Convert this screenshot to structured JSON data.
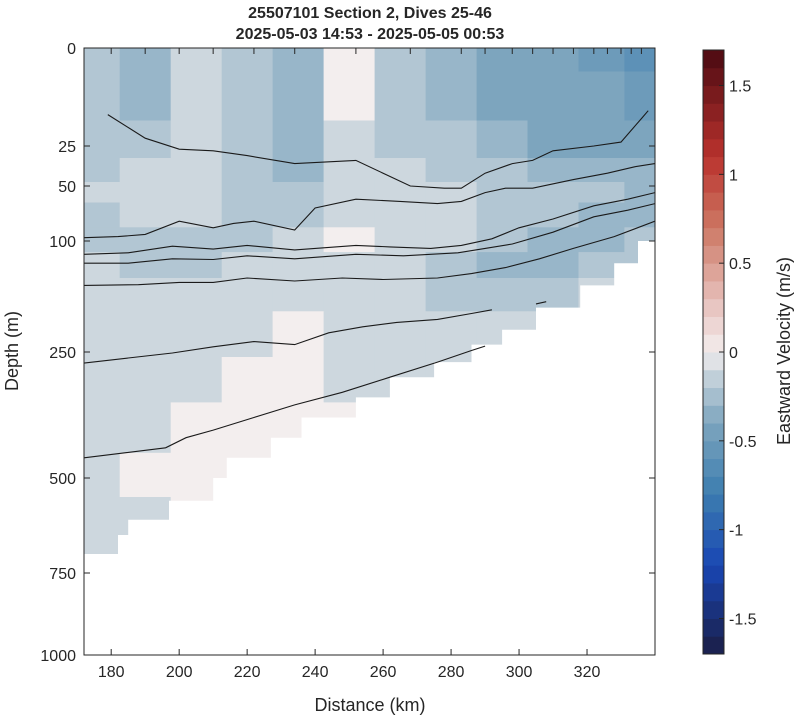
{
  "chart_data": {
    "type": "heatmap",
    "title": "25507101 Section 2, Dives 25-46",
    "subtitle": "2025-05-03 14:53 - 2025-05-05 00:53",
    "xlabel": "Distance (km)",
    "ylabel": "Depth (m)",
    "colorbar_label": "Eastward Velocity (m/s)",
    "xlim": [
      172,
      340
    ],
    "ylim": [
      1000,
      0
    ],
    "y_scale": "piecewise (stretched 0-250 m, compressed 250-1000 m)",
    "x_ticks": [
      180,
      200,
      220,
      240,
      260,
      280,
      300,
      320
    ],
    "x_tick_labels": [
      "180",
      "200",
      "220",
      "240",
      "260",
      "280",
      "300",
      "320"
    ],
    "y_ticks": [
      0,
      25,
      50,
      100,
      250,
      500,
      750,
      1000
    ],
    "y_tick_labels": [
      "0",
      "25",
      "50",
      "100",
      "250",
      "500",
      "750",
      "1000"
    ],
    "clim": [
      -1.7,
      1.7
    ],
    "colorbar_ticks": [
      1.5,
      1,
      0.5,
      0,
      -0.5,
      -1,
      -1.5
    ],
    "colorbar_tick_labels": [
      "1.5",
      "1",
      "0.5",
      "0",
      "-0.5",
      "-1",
      "-1.5"
    ],
    "colormap": "diverging blue-white-red (balance)",
    "colors": {
      "negative_end": "#1b2a6b",
      "zero": "#f3eeee",
      "positive_end": "#4a0a10"
    },
    "dive_markers_x": [
      180,
      190,
      200,
      210,
      222,
      234,
      252,
      268,
      283,
      290,
      298,
      304,
      310,
      316,
      322,
      326,
      330,
      333,
      336
    ],
    "velocity_fill": {
      "x": [
        175,
        190,
        205,
        220,
        235,
        250,
        265,
        280,
        295,
        310,
        325,
        337
      ],
      "depth": [
        0,
        12,
        25,
        40,
        55,
        75,
        100,
        130,
        170,
        220,
        300,
        400,
        500,
        600,
        700
      ],
      "values": [
        [
          -0.2,
          -0.3,
          -0.1,
          -0.25,
          -0.3,
          -0.05,
          -0.2,
          -0.3,
          -0.4,
          -0.45,
          -0.5,
          -0.6
        ],
        [
          -0.2,
          -0.3,
          -0.1,
          -0.25,
          -0.3,
          -0.05,
          -0.2,
          -0.3,
          -0.4,
          -0.45,
          -0.45,
          -0.55
        ],
        [
          -0.2,
          -0.25,
          -0.1,
          -0.2,
          -0.3,
          -0.1,
          -0.2,
          -0.25,
          -0.35,
          -0.4,
          -0.4,
          -0.45
        ],
        [
          -0.2,
          -0.15,
          -0.15,
          -0.2,
          -0.35,
          -0.15,
          -0.15,
          -0.2,
          -0.25,
          -0.3,
          -0.3,
          -0.35
        ],
        [
          -0.15,
          -0.15,
          -0.15,
          -0.2,
          -0.2,
          -0.15,
          -0.15,
          -0.15,
          -0.2,
          -0.25,
          -0.25,
          -0.3
        ],
        [
          -0.2,
          -0.15,
          -0.15,
          -0.2,
          -0.2,
          -0.1,
          -0.15,
          -0.15,
          -0.2,
          -0.25,
          -0.3,
          -0.3
        ],
        [
          -0.2,
          -0.2,
          -0.2,
          -0.2,
          -0.15,
          -0.05,
          -0.1,
          -0.15,
          -0.2,
          -0.3,
          -0.3,
          -0.25
        ],
        [
          -0.15,
          -0.2,
          -0.2,
          -0.15,
          -0.15,
          -0.1,
          -0.1,
          -0.2,
          -0.3,
          -0.3,
          -0.25,
          -0.2
        ],
        [
          -0.15,
          -0.15,
          -0.15,
          -0.15,
          -0.1,
          -0.1,
          -0.15,
          -0.2,
          -0.25,
          -0.2,
          -0.15,
          -0.15
        ],
        [
          -0.15,
          -0.15,
          -0.15,
          -0.1,
          -0.05,
          -0.1,
          -0.15,
          -0.15,
          -0.15,
          -0.15,
          -0.15,
          -0.15
        ],
        [
          -0.15,
          -0.1,
          -0.1,
          -0.05,
          -0.05,
          -0.1,
          -0.1,
          -0.1,
          -0.1,
          -0.1,
          -0.1,
          -0.1
        ],
        [
          -0.1,
          -0.1,
          -0.05,
          -0.05,
          -0.05,
          -0.05,
          -0.05,
          -0.05,
          -0.05,
          -0.05,
          -0.05,
          -0.05
        ],
        [
          -0.1,
          -0.05,
          -0.05,
          -0.05,
          -0.05,
          -0.05,
          -0.05,
          -0.05,
          -0.05,
          -0.05,
          -0.05,
          -0.05
        ],
        [
          -0.15,
          -0.1,
          -0.05,
          -0.05,
          -0.05,
          -0.05,
          -0.05,
          -0.05,
          -0.05,
          -0.05,
          -0.05,
          -0.05
        ],
        [
          -0.15,
          -0.1,
          -0.05,
          -0.05,
          -0.05,
          -0.05,
          -0.05,
          -0.05,
          -0.05,
          -0.05,
          -0.05,
          -0.05
        ]
      ]
    },
    "bottom_boundary": [
      {
        "x": 172,
        "depth": 700
      },
      {
        "x": 182,
        "depth": 700
      },
      {
        "x": 182,
        "depth": 650
      },
      {
        "x": 185,
        "depth": 650
      },
      {
        "x": 185,
        "depth": 610
      },
      {
        "x": 197,
        "depth": 610
      },
      {
        "x": 197,
        "depth": 560
      },
      {
        "x": 210,
        "depth": 560
      },
      {
        "x": 210,
        "depth": 500
      },
      {
        "x": 214,
        "depth": 500
      },
      {
        "x": 214,
        "depth": 460
      },
      {
        "x": 227,
        "depth": 460
      },
      {
        "x": 227,
        "depth": 420
      },
      {
        "x": 236,
        "depth": 420
      },
      {
        "x": 236,
        "depth": 380
      },
      {
        "x": 252,
        "depth": 380
      },
      {
        "x": 252,
        "depth": 340
      },
      {
        "x": 262,
        "depth": 340
      },
      {
        "x": 262,
        "depth": 300
      },
      {
        "x": 275,
        "depth": 300
      },
      {
        "x": 275,
        "depth": 270
      },
      {
        "x": 286,
        "depth": 270
      },
      {
        "x": 286,
        "depth": 240
      },
      {
        "x": 295,
        "depth": 240
      },
      {
        "x": 295,
        "depth": 220
      },
      {
        "x": 305,
        "depth": 220
      },
      {
        "x": 305,
        "depth": 190
      },
      {
        "x": 318,
        "depth": 190
      },
      {
        "x": 318,
        "depth": 160
      },
      {
        "x": 328,
        "depth": 160
      },
      {
        "x": 328,
        "depth": 130
      },
      {
        "x": 335,
        "depth": 130
      },
      {
        "x": 335,
        "depth": 100
      },
      {
        "x": 340,
        "depth": 100
      }
    ],
    "contour_lines": [
      [
        [
          179,
          17
        ],
        [
          190,
          23
        ],
        [
          200,
          27
        ],
        [
          210,
          28
        ],
        [
          220,
          31
        ],
        [
          234,
          36
        ],
        [
          252,
          34
        ],
        [
          268,
          50
        ],
        [
          278,
          52
        ],
        [
          283,
          52
        ],
        [
          290,
          42
        ],
        [
          298,
          36
        ],
        [
          304,
          34
        ],
        [
          310,
          28
        ],
        [
          322,
          25
        ],
        [
          330,
          24
        ],
        [
          336,
          18
        ],
        [
          338,
          16
        ]
      ],
      [
        [
          172,
          97
        ],
        [
          182,
          96
        ],
        [
          190,
          94
        ],
        [
          200,
          82
        ],
        [
          210,
          88
        ],
        [
          216,
          84
        ],
        [
          222,
          82
        ],
        [
          234,
          90
        ],
        [
          240,
          70
        ],
        [
          252,
          62
        ],
        [
          265,
          64
        ],
        [
          276,
          66
        ],
        [
          283,
          64
        ],
        [
          290,
          56
        ],
        [
          296,
          52
        ],
        [
          304,
          52
        ],
        [
          316,
          46
        ],
        [
          326,
          42
        ],
        [
          334,
          38
        ],
        [
          340,
          36
        ]
      ],
      [
        [
          172,
          118
        ],
        [
          185,
          116
        ],
        [
          198,
          107
        ],
        [
          210,
          111
        ],
        [
          220,
          106
        ],
        [
          234,
          112
        ],
        [
          252,
          106
        ],
        [
          262,
          108
        ],
        [
          274,
          110
        ],
        [
          283,
          106
        ],
        [
          292,
          98
        ],
        [
          300,
          88
        ],
        [
          310,
          80
        ],
        [
          322,
          68
        ],
        [
          332,
          62
        ],
        [
          340,
          56
        ]
      ],
      [
        [
          172,
          130
        ],
        [
          185,
          130
        ],
        [
          198,
          124
        ],
        [
          210,
          125
        ],
        [
          220,
          120
        ],
        [
          234,
          124
        ],
        [
          252,
          118
        ],
        [
          266,
          120
        ],
        [
          282,
          116
        ],
        [
          290,
          110
        ],
        [
          298,
          104
        ],
        [
          310,
          92
        ],
        [
          322,
          78
        ],
        [
          332,
          72
        ],
        [
          340,
          66
        ]
      ],
      [
        [
          172,
          160
        ],
        [
          188,
          159
        ],
        [
          200,
          156
        ],
        [
          210,
          156
        ],
        [
          220,
          150
        ],
        [
          234,
          154
        ],
        [
          248,
          150
        ],
        [
          260,
          152
        ],
        [
          276,
          150
        ],
        [
          286,
          144
        ],
        [
          296,
          136
        ],
        [
          306,
          124
        ],
        [
          316,
          110
        ],
        [
          328,
          96
        ],
        [
          340,
          82
        ]
      ],
      [
        [
          172,
          272
        ],
        [
          185,
          262
        ],
        [
          198,
          252
        ],
        [
          210,
          243
        ],
        [
          222,
          236
        ],
        [
          234,
          240
        ],
        [
          244,
          224
        ],
        [
          254,
          216
        ],
        [
          264,
          210
        ],
        [
          276,
          206
        ],
        [
          286,
          198
        ],
        [
          292,
          193
        ]
      ],
      [
        [
          172,
          460
        ],
        [
          184,
          450
        ],
        [
          196,
          440
        ],
        [
          202,
          420
        ],
        [
          210,
          405
        ],
        [
          222,
          380
        ],
        [
          234,
          355
        ],
        [
          248,
          330
        ],
        [
          262,
          300
        ],
        [
          276,
          270
        ],
        [
          286,
          248
        ],
        [
          290,
          242
        ]
      ],
      [
        [
          305,
          185
        ],
        [
          308,
          182
        ]
      ]
    ]
  }
}
